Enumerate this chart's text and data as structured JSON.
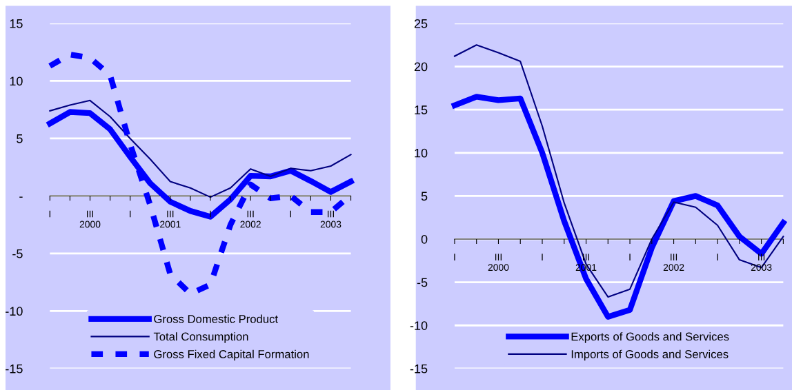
{
  "chart_data": [
    {
      "type": "line",
      "categories": [
        "I",
        null,
        "III\n2000",
        null,
        "I",
        null,
        "III\n2001",
        null,
        "I",
        null,
        "III\n2002",
        null,
        "I",
        null,
        "III\n2003",
        null
      ],
      "ylim": [
        -15,
        15
      ],
      "yticks": [
        -15,
        -10,
        -5,
        {
          "value": 0,
          "label": "-"
        },
        5,
        10,
        15
      ],
      "grid": "y",
      "legend": "bottom",
      "series": [
        {
          "name": "Gross Domestic Product",
          "color": "#0000ff",
          "line_style": "solid",
          "values": [
            6.3,
            7.3,
            7.2,
            5.8,
            3.4,
            1.1,
            -0.5,
            -1.3,
            -1.8,
            -0.3,
            1.75,
            1.7,
            2.2,
            1.3,
            0.35,
            1.25
          ]
        },
        {
          "name": "Total Consumption",
          "color": "#000080",
          "line_style": "solid",
          "values": [
            7.4,
            7.9,
            8.3,
            6.9,
            5.0,
            3.2,
            1.25,
            0.7,
            -0.1,
            0.7,
            2.35,
            1.7,
            2.4,
            2.2,
            2.6,
            3.6
          ]
        },
        {
          "name": "Gross Fixed Capital Formation",
          "color": "#0000ff",
          "line_style": "dashed",
          "values": [
            11.3,
            12.3,
            12.0,
            10.5,
            4.5,
            -0.8,
            -6.8,
            -8.5,
            -7.7,
            -2.5,
            1.0,
            -0.2,
            0.0,
            -1.4,
            -1.4,
            0.1
          ]
        }
      ]
    },
    {
      "type": "line",
      "categories": [
        "I",
        null,
        "III\n2000",
        null,
        "I",
        null,
        "III\n2001",
        null,
        "I",
        null,
        "III\n2002",
        null,
        "I",
        null,
        "III\n2003",
        null
      ],
      "ylim": [
        -15,
        25
      ],
      "yticks": [
        -15,
        -10,
        -5,
        0,
        5,
        10,
        15,
        20,
        25
      ],
      "grid": "y",
      "legend": "bottom",
      "series": [
        {
          "name": "Exports of Goods and Services",
          "color": "#0000ff",
          "line_style": "solid",
          "values": [
            15.5,
            16.5,
            16.1,
            16.3,
            10.0,
            2.1,
            -4.6,
            -9.0,
            -8.2,
            -1.0,
            4.4,
            5.0,
            3.9,
            0.3,
            -1.7,
            1.9
          ]
        },
        {
          "name": "Imports of Goods and Services",
          "color": "#000080",
          "line_style": "solid",
          "values": [
            21.2,
            22.5,
            21.6,
            20.6,
            13.1,
            4.2,
            -2.9,
            -6.7,
            -5.8,
            0.0,
            4.3,
            3.7,
            1.6,
            -2.4,
            -3.3,
            0.3
          ]
        }
      ]
    }
  ]
}
